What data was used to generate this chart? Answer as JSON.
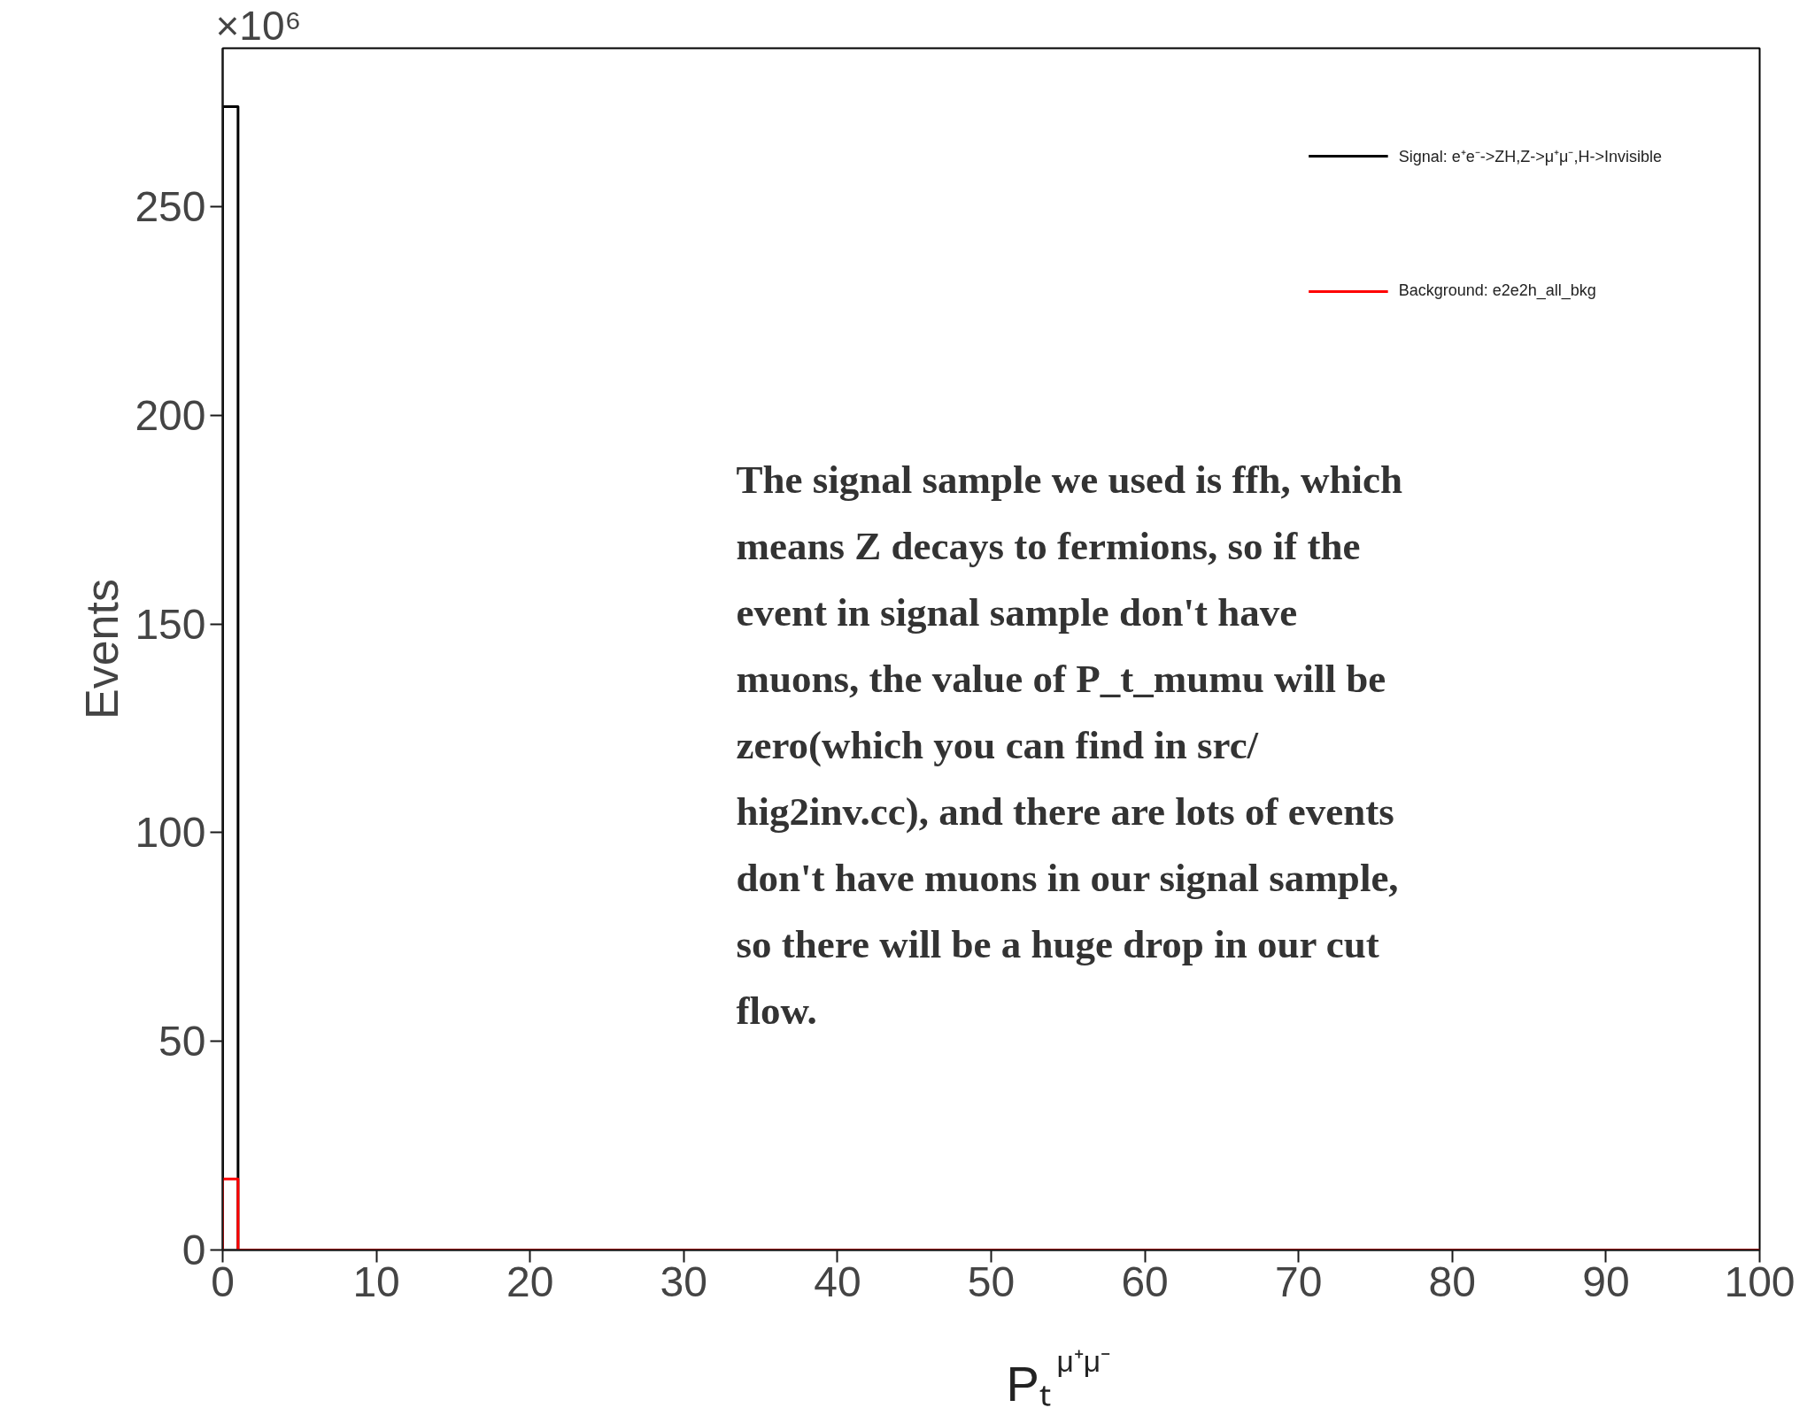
{
  "chart_data": {
    "type": "histogram",
    "xlabel": "Pₜ$^{μ⁺μ⁻}$",
    "ylabel": "Events",
    "bins": [
      0,
      1,
      100
    ],
    "series": [
      {
        "name": "Signal: e⁺e⁻->ZH,Z->μ⁺μ⁻,H->Invisible",
        "color": "#000000",
        "values": [
          274,
          0
        ]
      },
      {
        "name": "Background: e2e2h_all_bkg",
        "color": "#ff0000",
        "values": [
          17,
          0
        ]
      }
    ],
    "xlim": [
      0,
      100
    ],
    "ylim": [
      0,
      288
    ],
    "xticks": [
      0,
      10,
      20,
      30,
      40,
      50,
      60,
      70,
      80,
      90,
      100
    ],
    "yticks": [
      0,
      50,
      100,
      150,
      200,
      250
    ],
    "grid": false,
    "legend": "top right",
    "annotations": [
      "×10⁶",
      "The signal sample we used is ffh, which\nmeans Z decays to fermions, so if the\nevent in signal sample don't have\nmuons, the value of P_t_mumu will be\nzero(which you can find in src/\nhig2inv.cc), and there are lots of events\ndon't have muons in our signal sample,\nso there will be a huge drop in our cut\nflow."
    ]
  }
}
